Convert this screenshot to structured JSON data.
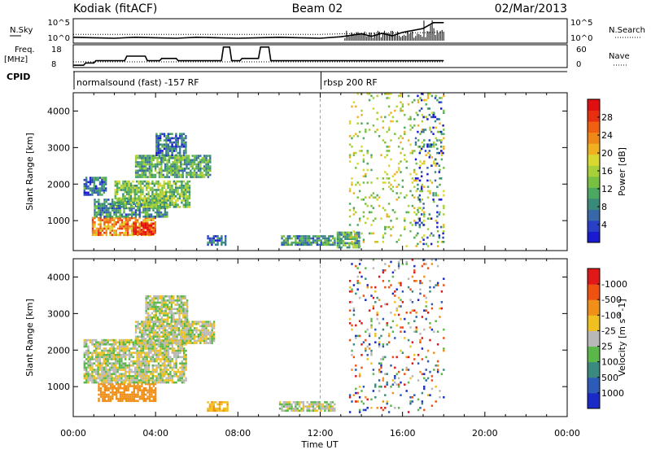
{
  "header": {
    "station": "Kodiak (fitACF)",
    "beam": "Beam 02",
    "date": "02/Mar/2013"
  },
  "chart_data": [
    {
      "type": "line",
      "panel": "noise",
      "left_label": "N.Sky",
      "right_label": "N.Search",
      "left_ticks": [
        "10^5",
        "10^0"
      ],
      "right_ticks": [
        "10^5",
        "10^0"
      ],
      "xlim": [
        0,
        24
      ],
      "series": [
        {
          "name": "N.Sky",
          "style": "solid",
          "x": [
            0,
            1,
            2,
            3,
            4,
            5,
            6,
            7,
            8,
            9,
            10,
            11,
            12,
            13,
            13.5,
            14,
            14.5,
            15,
            15.5,
            16,
            16.5,
            17,
            17.5,
            18
          ],
          "values": [
            1.2,
            1.1,
            1.0,
            1.2,
            1.1,
            1.0,
            1.2,
            1.1,
            1.0,
            1.1,
            1.2,
            1.1,
            1.0,
            1.3,
            1.6,
            1.9,
            1.4,
            2.0,
            1.5,
            2.2,
            2.6,
            3.0,
            4.2,
            4.2
          ]
        },
        {
          "name": "N.Search",
          "style": "dotted",
          "x": [
            0,
            2,
            4,
            6,
            8,
            10,
            12,
            14,
            16,
            18
          ],
          "values": [
            1.8,
            1.8,
            1.8,
            1.8,
            1.8,
            1.8,
            1.8,
            2.0,
            2.1,
            2.2
          ]
        }
      ]
    },
    {
      "type": "line",
      "panel": "frequency",
      "left_label": "Freq.",
      "left_unit": "[MHz]",
      "right_label": "Nave",
      "left_ticks": [
        "18",
        "8"
      ],
      "right_ticks": [
        "60",
        "0"
      ],
      "ylim": [
        8,
        18
      ],
      "xlim": [
        0,
        24
      ],
      "series": [
        {
          "name": "Freq.",
          "style": "solid",
          "x": [
            0,
            0.5,
            0.6,
            1.0,
            1.1,
            2.5,
            2.6,
            3.5,
            3.6,
            4.2,
            4.3,
            5.0,
            5.1,
            7.2,
            7.3,
            7.6,
            7.7,
            8.1,
            8.2,
            9.0,
            9.1,
            9.5,
            9.6,
            10.0,
            10.1,
            18.0
          ],
          "values": [
            9,
            9,
            10,
            10,
            11,
            11,
            13,
            13,
            11,
            11,
            12,
            12,
            11,
            11,
            17,
            17,
            11,
            11,
            12,
            12,
            17,
            17,
            11,
            11,
            11,
            11
          ]
        },
        {
          "name": "Nave",
          "style": "dotted",
          "x": [
            0,
            18
          ],
          "values": [
            10.5,
            10.5
          ]
        }
      ]
    },
    {
      "type": "table",
      "panel": "cpid",
      "label": "CPID",
      "segments": [
        {
          "start": 0,
          "end": 12,
          "text": "normalsound (fast) -157 RF"
        },
        {
          "start": 12,
          "end": 18,
          "text": "rbsp 200 RF"
        }
      ]
    },
    {
      "type": "heatmap",
      "panel": "power",
      "ylabel": "Slant Range [km]",
      "xlim": [
        0,
        24
      ],
      "ylim": [
        180,
        4500
      ],
      "yticks": [
        1000,
        2000,
        3000,
        4000
      ],
      "colorbar": {
        "label": "Power [dB]",
        "ticks": [
          "4",
          "8",
          "12",
          "16",
          "20",
          "24",
          "28"
        ],
        "colors": [
          "#1a1ad2",
          "#2840c8",
          "#3868a8",
          "#3a8a7a",
          "#4aa860",
          "#78c040",
          "#a8d038",
          "#d8d830",
          "#f0b020",
          "#f08818",
          "#f06010",
          "#e83010",
          "#e01010"
        ]
      },
      "regions": [
        {
          "t0": 0.9,
          "t1": 4.0,
          "r0": 600,
          "r1": 1100,
          "value": 22
        },
        {
          "t0": 2.9,
          "t1": 3.9,
          "r0": 650,
          "r1": 950,
          "value": 28
        },
        {
          "t0": 1.0,
          "t1": 4.6,
          "r0": 1100,
          "r1": 1600,
          "value": 10
        },
        {
          "t0": 2.0,
          "t1": 5.7,
          "r0": 1400,
          "r1": 2100,
          "value": 14
        },
        {
          "t0": 0.5,
          "t1": 1.6,
          "r0": 1700,
          "r1": 2200,
          "value": 8
        },
        {
          "t0": 3.0,
          "t1": 6.7,
          "r0": 2200,
          "r1": 2800,
          "value": 12
        },
        {
          "t0": 4.0,
          "t1": 5.5,
          "r0": 2800,
          "r1": 3400,
          "value": 8
        },
        {
          "t0": 6.5,
          "t1": 7.4,
          "r0": 350,
          "r1": 600,
          "value": 8
        },
        {
          "t0": 10.1,
          "t1": 12.7,
          "r0": 350,
          "r1": 600,
          "value": 10
        },
        {
          "t0": 12.8,
          "t1": 13.9,
          "r0": 250,
          "r1": 700,
          "value": 12
        },
        {
          "t0": 13.4,
          "t1": 18.0,
          "r0": 300,
          "r1": 4500,
          "value": 16
        },
        {
          "t0": 16.6,
          "t1": 18.0,
          "r0": 300,
          "r1": 4500,
          "value": 6
        }
      ]
    },
    {
      "type": "heatmap",
      "panel": "velocity",
      "ylabel": "Slant Range [km]",
      "xlabel": "Time UT",
      "xlim": [
        0,
        24
      ],
      "ylim": [
        180,
        4500
      ],
      "yticks": [
        1000,
        2000,
        3000,
        4000
      ],
      "xticks": [
        "00:00",
        "04:00",
        "08:00",
        "12:00",
        "16:00",
        "20:00",
        "00:00"
      ],
      "colorbar": {
        "label": "Velocity [m s^-1]",
        "ticks": [
          "1000",
          "500",
          "100",
          "25",
          "-25",
          "-100",
          "-500",
          "-1000"
        ],
        "colors": [
          "#1a2ac8",
          "#2c5cb8",
          "#3a8a80",
          "#5ab848",
          "#b8b8b8",
          "#f0c020",
          "#f09018",
          "#f05010",
          "#e01818"
        ]
      },
      "regions": [
        {
          "t0": 1.2,
          "t1": 4.0,
          "r0": 600,
          "r1": 1100,
          "value": -300
        },
        {
          "t0": 0.5,
          "t1": 5.5,
          "r0": 1100,
          "r1": 2300,
          "value": 0
        },
        {
          "t0": 3.0,
          "t1": 6.8,
          "r0": 2200,
          "r1": 2800,
          "value": 0
        },
        {
          "t0": 3.5,
          "t1": 5.5,
          "r0": 2800,
          "r1": 3500,
          "value": 0
        },
        {
          "t0": 6.5,
          "t1": 7.5,
          "r0": 350,
          "r1": 600,
          "value": -80
        },
        {
          "t0": 10.0,
          "t1": 12.7,
          "r0": 350,
          "r1": 600,
          "value": 0
        },
        {
          "t0": 13.4,
          "t1": 18.0,
          "r0": 300,
          "r1": 4500,
          "value": 900
        }
      ]
    }
  ]
}
